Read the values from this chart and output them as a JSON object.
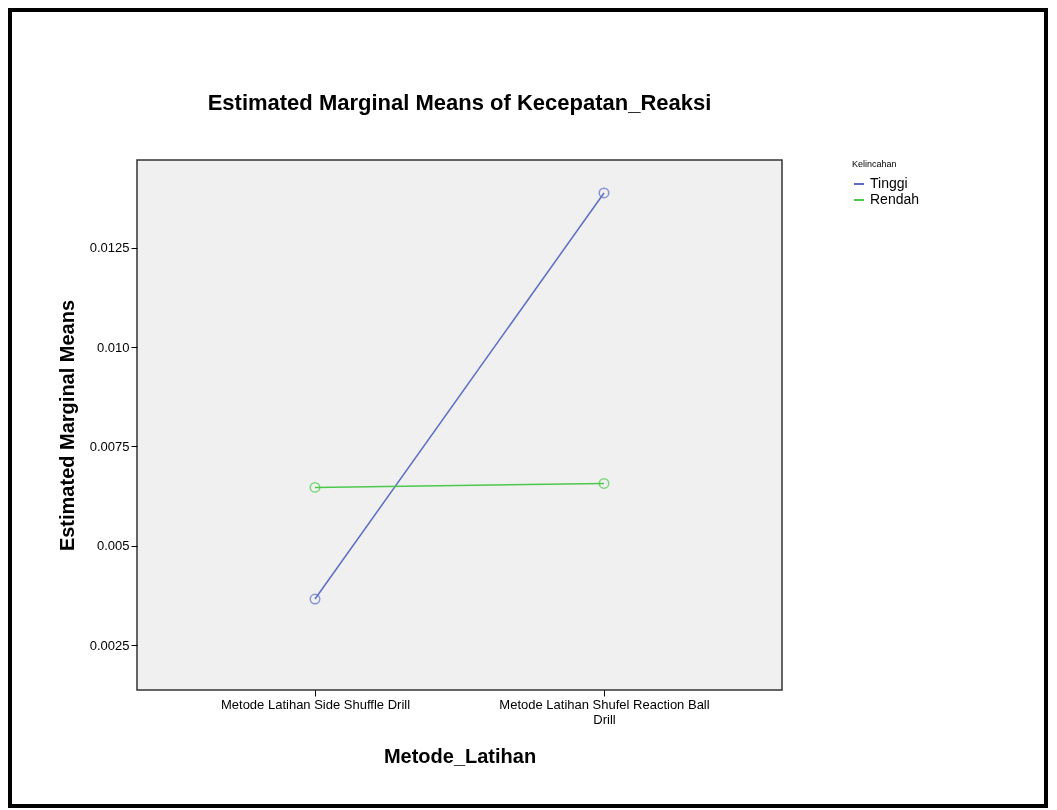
{
  "chart_data": {
    "type": "line",
    "title": "Estimated Marginal Means of Kecepatan_Reaksi",
    "xlabel": "Metode_Latihan",
    "ylabel": "Estimated Marginal Means",
    "legend_title": "Kelincahan",
    "categories": [
      "Metode Latihan Side Shuffle Drill",
      "Metode Latihan Shufel Reaction Ball Drill"
    ],
    "series": [
      {
        "name": "Tinggi",
        "color": "#5b6dc4",
        "values": [
          0.00366,
          0.01388
        ]
      },
      {
        "name": "Rendah",
        "color": "#4cc94c",
        "values": [
          0.00647,
          0.00657
        ]
      }
    ],
    "ylim": [
      0.00137,
      0.01471
    ],
    "yticks": [
      0.0025,
      {
        "value": 0.005,
        "label": "0.005"
      },
      0.0075,
      {
        "value": 0.01,
        "label": "0.010"
      },
      0.0125
    ],
    "grid": false,
    "legend": "top right",
    "marker": "circle",
    "line_style": "solid"
  }
}
